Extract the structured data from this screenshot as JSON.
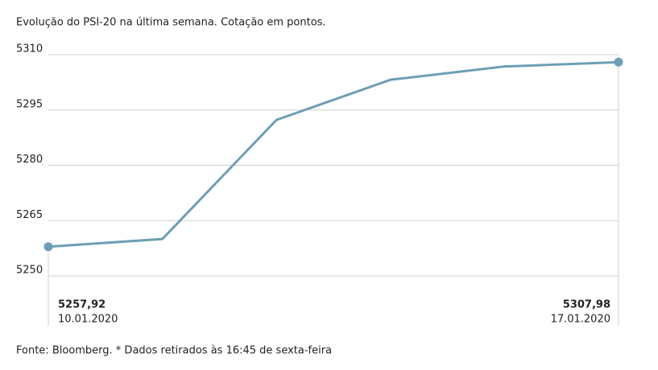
{
  "chart_data": {
    "type": "line",
    "title": "Evolução do PSI-20 na última semana. Cotação em pontos.",
    "note": "Fonte: Bloomberg.  * Dados retirados às 16:45 de sexta-feira",
    "categories": [
      "10.01.2020",
      null,
      null,
      null,
      null,
      "17.01.2020"
    ],
    "values": [
      5257.92,
      5260,
      5292.3,
      5303.2,
      5306.8,
      5307.98
    ],
    "value_labels": [
      "5257,92",
      null,
      null,
      null,
      null,
      "5307,98"
    ],
    "color": "#6b9fb6",
    "ylim": [
      5250,
      5310
    ],
    "yticks": [
      5250,
      5265,
      5280,
      5295,
      5310
    ],
    "grid": true
  }
}
